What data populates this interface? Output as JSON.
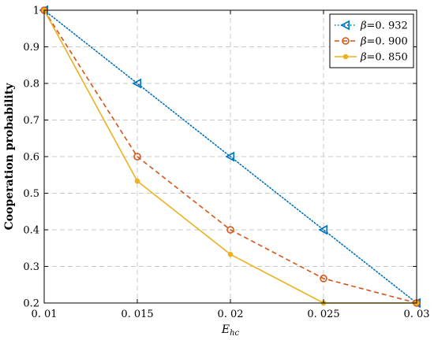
{
  "chart_data": {
    "type": "line",
    "title": "",
    "xlabel": "E",
    "xlabel_sub": "hc",
    "ylabel": "Cooperation probability",
    "xlim": [
      0.01,
      0.03
    ],
    "ylim": [
      0.2,
      1.0
    ],
    "x_ticks": [
      0.01,
      0.015,
      0.02,
      0.025,
      0.03
    ],
    "x_tick_labels": [
      "0. 01",
      "0. 015",
      "0. 02",
      "0. 025",
      "0. 03"
    ],
    "y_ticks": [
      0.2,
      0.3,
      0.4,
      0.5,
      0.6,
      0.7,
      0.8,
      0.9,
      1.0
    ],
    "y_tick_labels": [
      "0.2",
      "0.3",
      "0.4",
      "0.5",
      "0.6",
      "0.7",
      "0.8",
      "0.9",
      "1"
    ],
    "grid": true,
    "legend_position": "top-right",
    "x": [
      0.01,
      0.015,
      0.02,
      0.025,
      0.03
    ],
    "series": [
      {
        "name": "β=0. 932",
        "name_symbol": "β",
        "name_value": "=0. 932",
        "values": [
          1.0,
          0.8,
          0.6,
          0.4,
          0.2
        ],
        "color": "#0072BD",
        "style": "dotted",
        "marker": "triangle-left"
      },
      {
        "name": "β=0. 900",
        "name_symbol": "β",
        "name_value": "=0. 900",
        "values": [
          1.0,
          0.6,
          0.4,
          0.267,
          0.2
        ],
        "color": "#D95319",
        "style": "dashed",
        "marker": "circle"
      },
      {
        "name": "β=0. 850",
        "name_symbol": "β",
        "name_value": "=0. 850",
        "values": [
          1.0,
          0.533,
          0.333,
          0.2,
          0.2
        ],
        "color": "#EDB120",
        "style": "solid",
        "marker": "dot"
      }
    ]
  }
}
